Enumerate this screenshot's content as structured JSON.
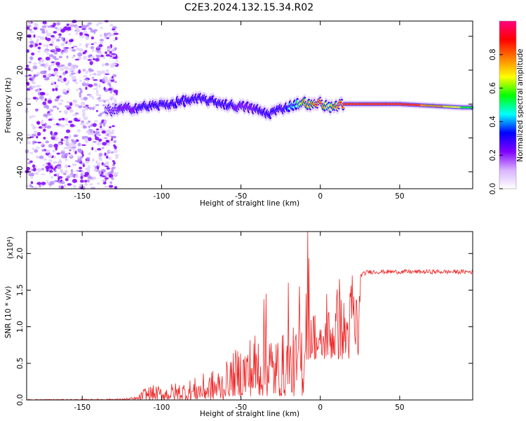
{
  "figure_title": "C2E3.2024.132.15.34.R02",
  "chart_data": [
    {
      "type": "heatmap",
      "xlabel": "Height of straight line (km)",
      "ylabel": "Frequency (Hz)",
      "xlim": [
        -185,
        96
      ],
      "ylim": [
        -50,
        49
      ],
      "xticks": [
        -150,
        -100,
        -50,
        0,
        50
      ],
      "yticks": [
        -40,
        -20,
        0,
        20,
        40
      ],
      "colorbar": {
        "label": "Normalized spectral amplitude",
        "range": [
          0.0,
          1.0
        ],
        "ticks": [
          "0.0",
          "0.2",
          "0.4",
          "0.6",
          "0.8"
        ],
        "colors": [
          "#ffffff",
          "#d9b3ff",
          "#7f00ff",
          "#0000ff",
          "#00ffff",
          "#00ff00",
          "#ffff00",
          "#ff8000",
          "#ff0000",
          "#ff0080"
        ]
      },
      "noise_region": {
        "x_range": [
          -185,
          -128
        ],
        "y_range": [
          -50,
          49
        ],
        "amplitude": 0.1
      },
      "ridge": {
        "x": [
          -135,
          -125,
          -115,
          -105,
          -95,
          -85,
          -75,
          -65,
          -55,
          -45,
          -38,
          -33,
          -28,
          -22,
          -15,
          -10,
          -5,
          0,
          5,
          10,
          15,
          30,
          50,
          70,
          90,
          96
        ],
        "frequency": [
          -4,
          -3,
          -2,
          -1,
          0,
          2,
          3,
          1,
          -1,
          -2,
          -4,
          -6,
          -4,
          -2,
          0,
          1,
          -1,
          1,
          -2,
          -1,
          0,
          0,
          0,
          -1,
          -2,
          -2
        ],
        "amplitude": [
          0.15,
          0.25,
          0.28,
          0.3,
          0.35,
          0.35,
          0.3,
          0.3,
          0.28,
          0.25,
          0.3,
          0.28,
          0.3,
          0.35,
          0.5,
          0.8,
          0.8,
          0.9,
          0.6,
          0.8,
          0.9,
          0.9,
          0.9,
          0.8,
          0.6,
          0.5
        ]
      }
    },
    {
      "type": "line",
      "xlabel": "Height of straight line (km)",
      "ylabel": "SNR (10 * v/v)",
      "yexponent": "(x10⁴)",
      "xlim": [
        -185,
        96
      ],
      "ylim": [
        0,
        2.3
      ],
      "xticks": [
        -150,
        -100,
        -50,
        0,
        50
      ],
      "yticks": [
        0.0,
        0.5,
        1.0,
        1.5,
        2.0
      ],
      "color": "#ee2222",
      "envelope": {
        "x": [
          -185,
          -150,
          -125,
          -115,
          -110,
          -100,
          -90,
          -80,
          -70,
          -60,
          -50,
          -40,
          -35,
          -30,
          -25,
          -20,
          -15,
          -10,
          -8,
          -5,
          0,
          5,
          10,
          15,
          20,
          25,
          30,
          50,
          70,
          96
        ],
        "y": [
          0.01,
          0.01,
          0.02,
          0.05,
          0.2,
          0.2,
          0.25,
          0.3,
          0.4,
          0.5,
          0.8,
          1.0,
          1.45,
          0.9,
          0.9,
          1.0,
          1.0,
          1.5,
          2.3,
          1.4,
          1.0,
          1.3,
          1.6,
          1.4,
          1.7,
          1.7,
          1.75,
          1.75,
          1.75,
          1.75
        ]
      },
      "spikes": [
        {
          "x": -8,
          "y": 2.3
        },
        {
          "x": -34,
          "y": 1.45
        },
        {
          "x": -20,
          "y": 1.6
        },
        {
          "x": -13,
          "y": 1.55
        },
        {
          "x": 4,
          "y": 1.45
        },
        {
          "x": 12,
          "y": 1.65
        },
        {
          "x": 20,
          "y": 1.7
        }
      ]
    }
  ]
}
